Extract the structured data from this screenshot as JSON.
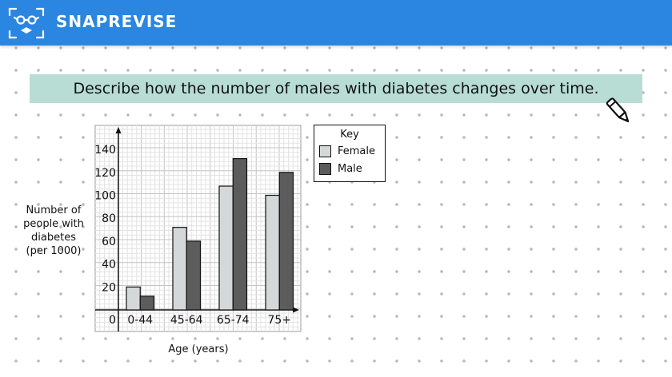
{
  "header": {
    "brand": "SNAPREVISE",
    "background_color": "#2a86e0",
    "logo_icon": "glasses-face-icon"
  },
  "question": {
    "text": "Describe how the number of males with diabetes changes over time.",
    "background_color": "#b7ddd4",
    "icon": "pencil-icon"
  },
  "chart_data": {
    "type": "bar",
    "categories": [
      "0-44",
      "45-64",
      "65-74",
      "75+"
    ],
    "series": [
      {
        "name": "Female",
        "values": [
          20,
          72,
          108,
          100
        ],
        "color": "#d5d8d8"
      },
      {
        "name": "Male",
        "values": [
          12,
          60,
          132,
          120
        ],
        "color": "#5c5c5c"
      }
    ],
    "xlabel": "Age (years)",
    "ylabel": "Number of people with diabetes (per 1000)",
    "ylabel_lines": [
      "Number of",
      "people with",
      "diabetes",
      "(per 1000)"
    ],
    "yticks": [
      20,
      40,
      60,
      80,
      100,
      120,
      140
    ],
    "origin_label": "0",
    "ylim": [
      0,
      140
    ],
    "grid": true,
    "legend": {
      "title": "Key",
      "position": "right"
    }
  }
}
